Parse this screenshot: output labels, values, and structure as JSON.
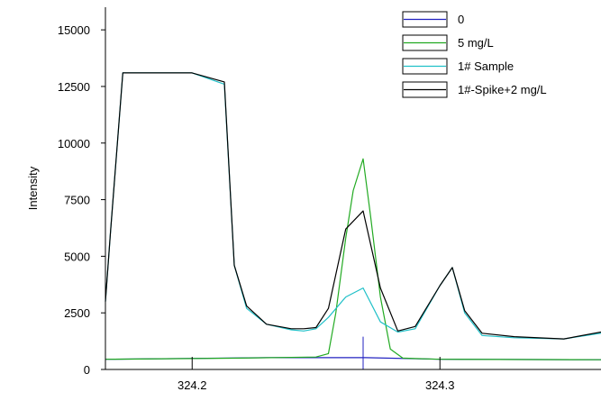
{
  "chart_data": {
    "type": "line",
    "title": "",
    "xlabel": "",
    "ylabel": "Intensity",
    "xlim": [
      324.165,
      324.365
    ],
    "ylim": [
      0,
      16000
    ],
    "x_ticks": [
      "324.2",
      "324.3"
    ],
    "y_ticks": [
      "0",
      "2500",
      "5000",
      "7500",
      "10000",
      "12500",
      "15000"
    ],
    "grid": false,
    "legend_position": "top-right",
    "series": [
      {
        "name": "0",
        "color": "#2020c0",
        "x": [
          324.165,
          324.23,
          324.27,
          324.3,
          324.365
        ],
        "y": [
          450,
          520,
          520,
          450,
          430
        ]
      },
      {
        "name": "5 mg/L",
        "color": "#22aa22",
        "x": [
          324.165,
          324.22,
          324.25,
          324.255,
          324.258,
          324.262,
          324.265,
          324.269,
          324.272,
          324.276,
          324.28,
          324.285,
          324.29,
          324.3,
          324.365
        ],
        "y": [
          450,
          500,
          550,
          700,
          2500,
          5800,
          7900,
          9300,
          6800,
          3200,
          900,
          500,
          480,
          450,
          430
        ]
      },
      {
        "name": "1# Sample",
        "color": "#20c0c8",
        "x": [
          324.165,
          324.167,
          324.172,
          324.178,
          324.2,
          324.213,
          324.217,
          324.222,
          324.23,
          324.24,
          324.245,
          324.25,
          324.255,
          324.262,
          324.269,
          324.276,
          324.283,
          324.29,
          324.3,
          324.305,
          324.31,
          324.317,
          324.33,
          324.35,
          324.365
        ],
        "y": [
          3000,
          6000,
          13100,
          13100,
          13100,
          12600,
          4600,
          2700,
          2000,
          1750,
          1700,
          1800,
          2300,
          3200,
          3600,
          2100,
          1650,
          1800,
          3700,
          4500,
          2500,
          1500,
          1400,
          1350,
          1600
        ]
      },
      {
        "name": "1#-Spike+2 mg/L",
        "color": "#000000",
        "x": [
          324.165,
          324.167,
          324.172,
          324.178,
          324.2,
          324.213,
          324.217,
          324.222,
          324.23,
          324.24,
          324.245,
          324.25,
          324.255,
          324.262,
          324.269,
          324.276,
          324.283,
          324.29,
          324.3,
          324.305,
          324.31,
          324.317,
          324.33,
          324.35,
          324.365
        ],
        "y": [
          3000,
          6000,
          13100,
          13100,
          13100,
          12700,
          4600,
          2800,
          2000,
          1800,
          1800,
          1850,
          2700,
          6200,
          7000,
          3600,
          1700,
          1900,
          3700,
          4500,
          2600,
          1600,
          1450,
          1350,
          1650
        ]
      }
    ],
    "annotations": {
      "marker_x": 324.269,
      "marker_y_range": [
        0,
        1450
      ]
    }
  }
}
